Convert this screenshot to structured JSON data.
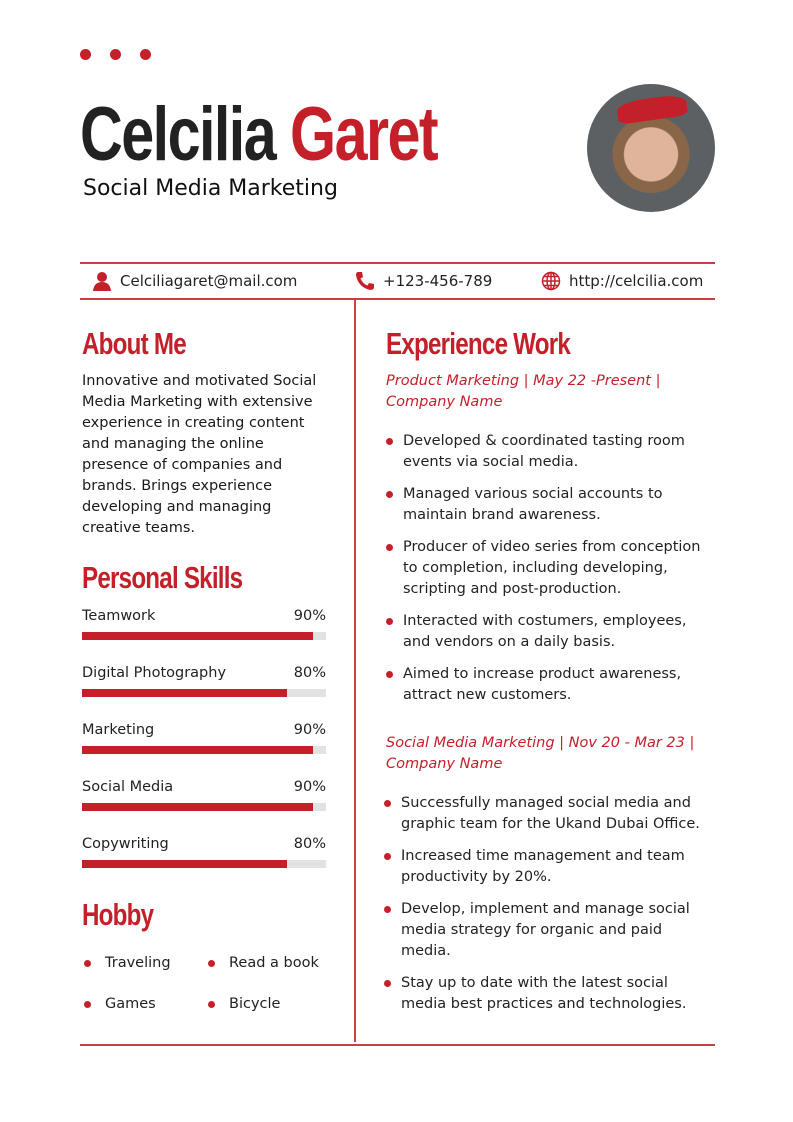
{
  "header": {
    "first_name": "Celcilia",
    "last_name": "Garet",
    "title": "Social Media Marketing"
  },
  "contact": {
    "email": "Celciliagaret@mail.com",
    "phone": "+123-456-789",
    "website": "http://celcilia.com"
  },
  "about": {
    "heading": "About Me",
    "text": "Innovative and motivated Social Media Marketing with extensive experience in creating content and managing the online presence of companies and brands. Brings experience developing and managing creative teams."
  },
  "skills": {
    "heading": "Personal Skills",
    "items": [
      {
        "name": "Teamwork",
        "label": "90%",
        "value": 90
      },
      {
        "name": "Digital Photography",
        "label": "80%",
        "value": 80
      },
      {
        "name": "Marketing",
        "label": "90%",
        "value": 90
      },
      {
        "name": "Social Media",
        "label": "90%",
        "value": 90
      },
      {
        "name": "Copywriting",
        "label": "80%",
        "value": 80
      }
    ]
  },
  "hobby": {
    "heading": "Hobby",
    "items": [
      "Traveling",
      "Read a book",
      "Games",
      "Bicycle"
    ]
  },
  "experience": {
    "heading": "Experience Work",
    "jobs": [
      {
        "title": "Product Marketing | May 22 -Present | Company Name",
        "bullets": [
          "Developed & coordinated tasting room events via social media.",
          "Managed various social accounts to maintain brand awareness.",
          "Producer of video series from conception to completion, including developing, scripting and post-production.",
          "Interacted with costumers, employees, and vendors on a daily basis.",
          "Aimed to increase product awareness, attract new customers."
        ]
      },
      {
        "title": "Social Media Marketing | Nov 20 - Mar 23 | Company Name",
        "bullets": [
          "Successfully managed social media and graphic team for the Ukand Dubai Office.",
          "Increased time management and team productivity by 20%.",
          "Develop, implement and manage social media strategy for organic and paid media.",
          "Stay up to date with the latest social media best practices and technologies."
        ]
      }
    ]
  },
  "colors": {
    "accent": "#c4202a"
  }
}
